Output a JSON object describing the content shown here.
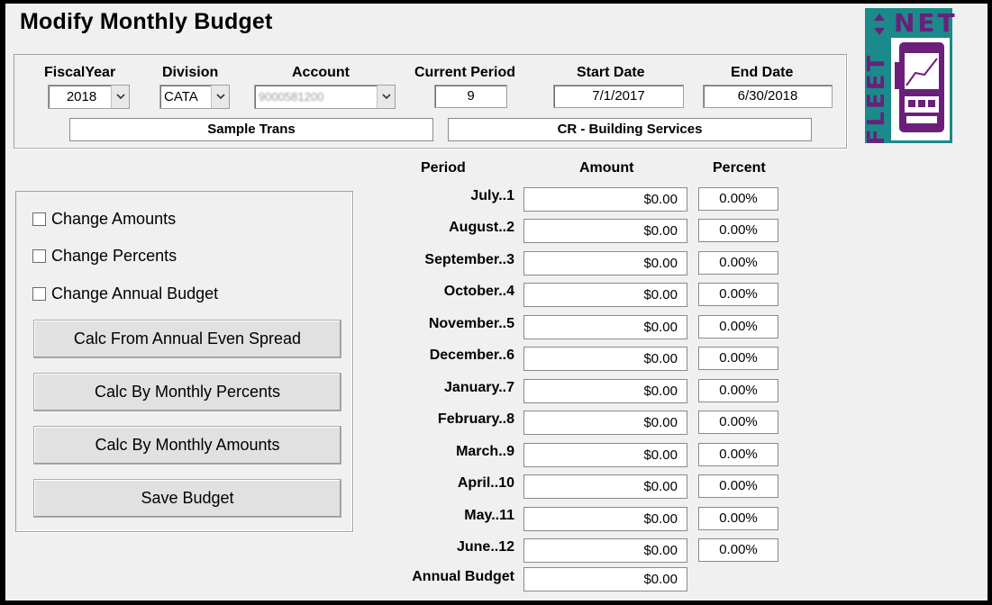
{
  "window": {
    "title": "Modify Monthly Budget"
  },
  "logo": {
    "text_vertical": "FLEET",
    "text_horizontal": "NET"
  },
  "header": {
    "fiscal_year_label": "FiscalYear",
    "fiscal_year_value": "2018",
    "division_label": "Division",
    "division_value": "CATA",
    "account_label": "Account",
    "account_value": "9000581200",
    "current_period_label": "Current Period",
    "current_period_value": "9",
    "start_date_label": "Start Date",
    "start_date_value": "7/1/2017",
    "end_date_label": "End Date",
    "end_date_value": "6/30/2018",
    "division_desc": "Sample Trans",
    "account_desc": "CR - Building Services"
  },
  "options": {
    "change_amounts": "Change Amounts",
    "change_percents": "Change Percents",
    "change_annual_budget": "Change Annual Budget"
  },
  "buttons": {
    "calc_annual_even": "Calc From Annual Even Spread",
    "calc_monthly_percents": "Calc By Monthly Percents",
    "calc_monthly_amounts": "Calc By Monthly Amounts",
    "save_budget": "Save Budget"
  },
  "grid": {
    "period_header": "Period",
    "amount_header": "Amount",
    "percent_header": "Percent",
    "rows": [
      {
        "period": "July..1",
        "amount": "$0.00",
        "percent": "0.00%"
      },
      {
        "period": "August..2",
        "amount": "$0.00",
        "percent": "0.00%"
      },
      {
        "period": "September..3",
        "amount": "$0.00",
        "percent": "0.00%"
      },
      {
        "period": "October..4",
        "amount": "$0.00",
        "percent": "0.00%"
      },
      {
        "period": "November..5",
        "amount": "$0.00",
        "percent": "0.00%"
      },
      {
        "period": "December..6",
        "amount": "$0.00",
        "percent": "0.00%"
      },
      {
        "period": "January..7",
        "amount": "$0.00",
        "percent": "0.00%"
      },
      {
        "period": "February..8",
        "amount": "$0.00",
        "percent": "0.00%"
      },
      {
        "period": "March..9",
        "amount": "$0.00",
        "percent": "0.00%"
      },
      {
        "period": "April..10",
        "amount": "$0.00",
        "percent": "0.00%"
      },
      {
        "period": "May..11",
        "amount": "$0.00",
        "percent": "0.00%"
      },
      {
        "period": "June..12",
        "amount": "$0.00",
        "percent": "0.00%"
      }
    ],
    "annual_budget_label": "Annual Budget",
    "annual_budget_value": "$0.00"
  },
  "colors": {
    "window_bg": "#f0f0f0",
    "logo_teal": "#1a8a8a",
    "logo_purple": "#6b1f7a",
    "logo_bg": "#ffffff"
  }
}
